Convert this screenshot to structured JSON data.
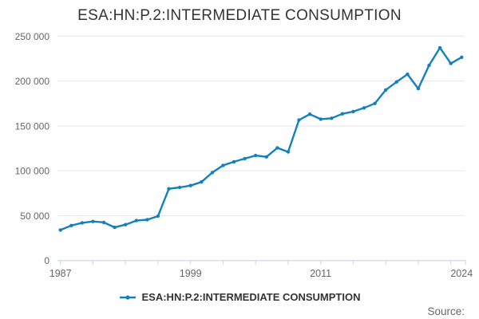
{
  "header": {
    "title": "ESA:HN:P.2:INTERMEDIATE CONSUMPTION"
  },
  "legend": {
    "label": "ESA:HN:P.2:INTERMEDIATE CONSUMPTION"
  },
  "footer": {
    "source_label": "Source:"
  },
  "colors": {
    "series": "#1380BE",
    "grid": "#e6e6e6",
    "axis": "#c8d4e4",
    "label": "#666666",
    "title": "#333333",
    "legend_text": "#333333"
  },
  "chart_data": {
    "type": "line",
    "title": "ESA:HN:P.2:INTERMEDIATE CONSUMPTION",
    "xlabel": "",
    "ylabel": "",
    "ylim": [
      0,
      250000
    ],
    "grid": "horizontal",
    "legend_position": "bottom",
    "x": [
      1987,
      1988,
      1989,
      1990,
      1991,
      1992,
      1993,
      1994,
      1995,
      1996,
      1997,
      1998,
      1999,
      2000,
      2001,
      2002,
      2003,
      2004,
      2005,
      2006,
      2007,
      2008,
      2009,
      2010,
      2011,
      2012,
      2013,
      2014,
      2015,
      2016,
      2017,
      2018,
      2019,
      2020,
      2021,
      2022,
      2023,
      2024
    ],
    "series": [
      {
        "name": "ESA:HN:P.2:INTERMEDIATE CONSUMPTION",
        "values": [
          34000,
          39000,
          42000,
          43500,
          42500,
          37000,
          40000,
          44500,
          45500,
          49500,
          80000,
          81500,
          83500,
          87500,
          98000,
          106000,
          110000,
          113500,
          117000,
          115500,
          125500,
          121000,
          156500,
          163000,
          157500,
          158500,
          163500,
          166000,
          170000,
          175000,
          190000,
          199000,
          207500,
          191500,
          217500,
          237000,
          219500,
          226500
        ]
      }
    ],
    "yticks": [
      {
        "value": 0,
        "label": "0"
      },
      {
        "value": 50000,
        "label": "50 000"
      },
      {
        "value": 100000,
        "label": "100 000"
      },
      {
        "value": 150000,
        "label": "150 000"
      },
      {
        "value": 200000,
        "label": "200 000"
      },
      {
        "value": 250000,
        "label": "250 000"
      }
    ],
    "xtick_years": [
      1987,
      1990,
      1993,
      1996,
      1999,
      2002,
      2005,
      2008,
      2011,
      2014,
      2017,
      2020,
      2023
    ],
    "xtick_labels": [
      "1987",
      "1999",
      "2011",
      "2024"
    ],
    "xtick_label_years": [
      1987,
      1999,
      2011,
      2024
    ]
  }
}
